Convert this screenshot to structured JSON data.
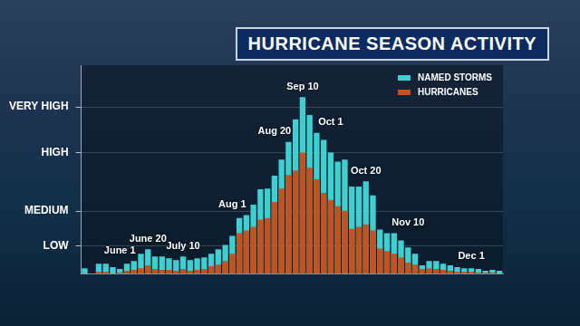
{
  "chart_data": {
    "type": "bar",
    "title": "HURRICANE SEASON ACTIVITY",
    "categories": [
      null,
      null,
      null,
      null,
      null,
      "June 1",
      null,
      null,
      null,
      "June 20",
      null,
      null,
      null,
      null,
      "July 10",
      null,
      null,
      null,
      null,
      null,
      null,
      "Aug 1",
      null,
      null,
      null,
      null,
      null,
      "Aug 20",
      null,
      null,
      null,
      "Sep 10",
      null,
      null,
      null,
      "Oct 1",
      null,
      null,
      null,
      null,
      "Oct 20",
      null,
      null,
      null,
      null,
      null,
      "Nov 10",
      null,
      null,
      null,
      null,
      null,
      null,
      null,
      null,
      "Dec 1",
      null,
      null,
      null,
      null
    ],
    "series": [
      {
        "name": "NAMED STORMS",
        "color": "#3fcfd0",
        "values": [
          1.9,
          0,
          3.5,
          3.5,
          2.3,
          1.6,
          3.5,
          4.5,
          7.1,
          8.7,
          6.1,
          6.1,
          5.5,
          4.8,
          6.1,
          4.8,
          5.5,
          5.8,
          7.1,
          8.7,
          10.3,
          13.5,
          20,
          21,
          24.8,
          30.3,
          30.6,
          35.2,
          41,
          47.4,
          55.5,
          63.5,
          57.1,
          50.6,
          48.1,
          43.5,
          40.3,
          41,
          31.3,
          31.3,
          33.2,
          28.1,
          15.8,
          14.5,
          14.5,
          11.9,
          9.4,
          7.1,
          2.9,
          4.5,
          4.5,
          3.5,
          2.9,
          2.3,
          1.9,
          1.9,
          1.6,
          1,
          1.3,
          1
        ]
      },
      {
        "name": "HURRICANES",
        "color": "#c4521f",
        "values": [
          0,
          0,
          0.6,
          0.6,
          0,
          0.3,
          1,
          1.3,
          1.9,
          2.9,
          1.6,
          1.3,
          1.3,
          1,
          1.6,
          1,
          1.3,
          1.6,
          2.6,
          3.2,
          4.5,
          7.1,
          14.5,
          15.5,
          16.8,
          19.4,
          20,
          25.8,
          30.6,
          35.5,
          37.1,
          43.5,
          38.1,
          33.9,
          29,
          26.5,
          24.2,
          22.6,
          16.1,
          16.8,
          17.7,
          15.5,
          9,
          8.1,
          7.1,
          5.8,
          3.9,
          3.2,
          1.6,
          1.9,
          1.6,
          1.3,
          1,
          0.6,
          0.6,
          0.6,
          0.3,
          0.3,
          0.3,
          0
        ]
      }
    ],
    "ylim": [
      0,
      75
    ],
    "yticks": [
      {
        "value": 10,
        "label": "LOW"
      },
      {
        "value": 22.5,
        "label": "MEDIUM"
      },
      {
        "value": 43.5,
        "label": "HIGH"
      },
      {
        "value": 60,
        "label": "VERY HIGH"
      }
    ],
    "grid": true,
    "legend": "top-right",
    "stacked": false
  }
}
